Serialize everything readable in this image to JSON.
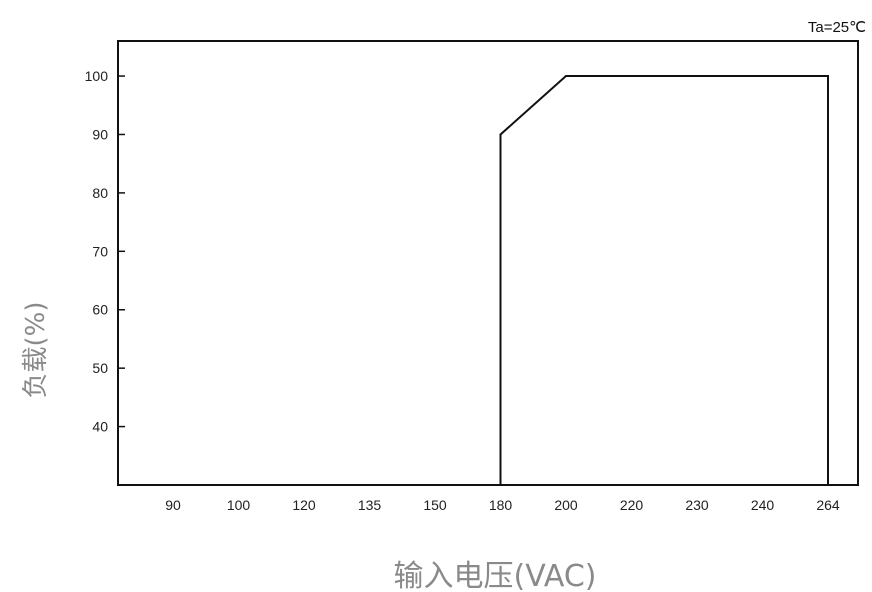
{
  "chart_data": {
    "type": "line",
    "title": "",
    "annotation": "Ta=25℃",
    "xlabel": "输入电压(VAC)",
    "ylabel": "负载(%)",
    "x_categories": [
      "90",
      "100",
      "120",
      "135",
      "150",
      "180",
      "200",
      "220",
      "230",
      "240",
      "264"
    ],
    "y_ticks": [
      "40",
      "50",
      "60",
      "70",
      "80",
      "90",
      "100"
    ],
    "ylim": [
      30,
      106
    ],
    "grid": false,
    "series": [
      {
        "points": [
          {
            "x": "180",
            "y": 30
          },
          {
            "x": "180",
            "y": 90
          },
          {
            "x": "200",
            "y": 100
          },
          {
            "x": "264",
            "y": 100
          },
          {
            "x": "264",
            "y": 30
          }
        ]
      }
    ]
  }
}
